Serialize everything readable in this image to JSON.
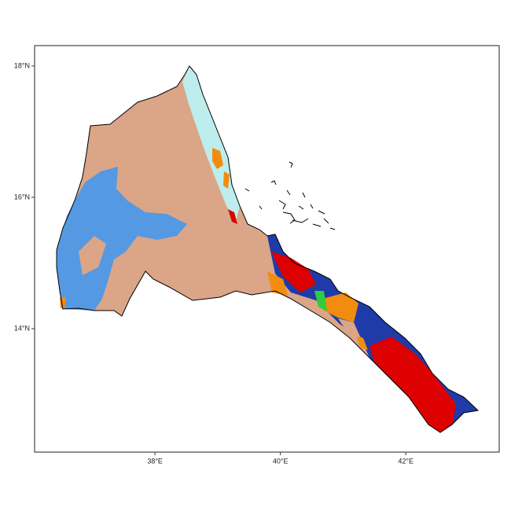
{
  "chart_data": {
    "type": "map",
    "xlim": [
      36.08,
      43.49
    ],
    "ylim": [
      12.12,
      18.31
    ],
    "xticks": [
      {
        "value": 38,
        "label": "38°E"
      },
      {
        "value": 40,
        "label": "40°E"
      },
      {
        "value": 42,
        "label": "42°E"
      }
    ],
    "yticks": [
      {
        "value": 14,
        "label": "14°N"
      },
      {
        "value": 16,
        "label": "16°N"
      },
      {
        "value": 18,
        "label": "18°N"
      }
    ]
  }
}
